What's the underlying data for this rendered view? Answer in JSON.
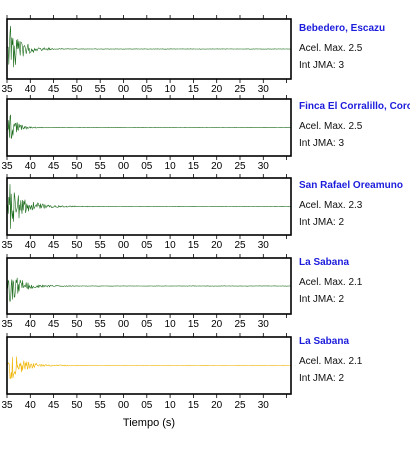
{
  "chart_data": {
    "type": "line",
    "x_tick_labels": [
      "35",
      "40",
      "45",
      "50",
      "55",
      "00",
      "05",
      "10",
      "15",
      "20",
      "25",
      "30"
    ],
    "xlabel": "Tiempo (s)",
    "series": [
      {
        "name": "Bebedero, Escazu",
        "accel_label": "Acel. Max.",
        "accel_value": "2.5",
        "jma_label": "Int JMA:",
        "jma_value": "3",
        "color": "#1a6b1a",
        "amplitude": 1.0,
        "decay": 0.09,
        "show_tick_labels": true
      },
      {
        "name": "Finca El Corralillo, Coronado",
        "accel_label": "Acel. Max.",
        "accel_value": "2.5",
        "jma_label": "Int JMA:",
        "jma_value": "3",
        "color": "#1a6b1a",
        "amplitude": 0.55,
        "decay": 0.14,
        "show_tick_labels": true
      },
      {
        "name": "San Rafael Oreamuno",
        "accel_label": "Acel. Max.",
        "accel_value": "2.3",
        "jma_label": "Int JMA:",
        "jma_value": "2",
        "color": "#1a6b1a",
        "amplitude": 0.95,
        "decay": 0.07,
        "show_tick_labels": true
      },
      {
        "name": "La Sabana",
        "accel_label": "Acel. Max.",
        "accel_value": "2.1",
        "jma_label": "Int JMA:",
        "jma_value": "2",
        "color": "#1a6b1a",
        "amplitude": 0.65,
        "decay": 0.08,
        "show_tick_labels": true
      },
      {
        "name": "La Sabana",
        "accel_label": "Acel. Max.",
        "accel_value": "2.1",
        "jma_label": "Int JMA:",
        "jma_value": "2",
        "color": "#f0b400",
        "amplitude": 0.65,
        "decay": 0.08,
        "show_tick_labels": true
      }
    ]
  }
}
